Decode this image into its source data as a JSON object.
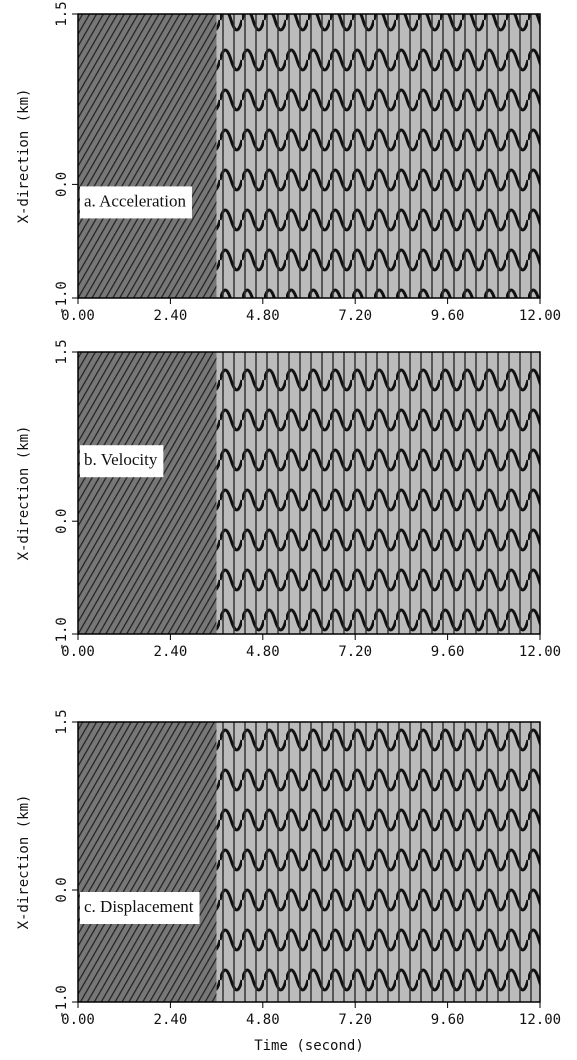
{
  "chart_data": [
    {
      "type": "seismogram",
      "annotation": "a. Acceleration",
      "ylabel": "X-direction (km)",
      "xlim": [
        0,
        12
      ],
      "ylim": [
        -1.0,
        1.5
      ],
      "xticks": [
        {
          "value": 0,
          "label": "0.00"
        },
        {
          "value": 2.4,
          "label": "2.40"
        },
        {
          "value": 4.8,
          "label": "4.80"
        },
        {
          "value": 7.2,
          "label": "7.20"
        },
        {
          "value": 9.6,
          "label": "9.60"
        },
        {
          "value": 12,
          "label": "12.00"
        }
      ],
      "yticks": [
        {
          "value": -1,
          "label": "-1.0"
        },
        {
          "value": 0,
          "label": "0.0"
        },
        1.5
      ]
    },
    {
      "type": "seismogram",
      "annotation": "b. Velocity",
      "ylabel": "X-direction (km)",
      "xlim": [
        0,
        12
      ],
      "ylim": [
        -1.0,
        1.5
      ],
      "xticks": [
        {
          "value": 0,
          "label": "0.00"
        },
        {
          "value": 2.4,
          "label": "2.40"
        },
        {
          "value": 4.8,
          "label": "4.80"
        },
        {
          "value": 7.2,
          "label": "7.20"
        },
        {
          "value": 9.6,
          "label": "9.60"
        },
        {
          "value": 12,
          "label": "12.00"
        }
      ],
      "yticks": [
        {
          "value": -1,
          "label": "-1.0"
        },
        {
          "value": 0,
          "label": "0.0"
        },
        1.5
      ]
    },
    {
      "type": "seismogram",
      "annotation": "c. Displacement",
      "ylabel": "X-direction (km)",
      "xlabel": "Time (second)",
      "xlim": [
        0,
        12
      ],
      "ylim": [
        -1.0,
        1.5
      ],
      "xticks": [
        {
          "value": 0,
          "label": "0.00"
        },
        {
          "value": 2.4,
          "label": "2.40"
        },
        {
          "value": 4.8,
          "label": "4.80"
        },
        {
          "value": 7.2,
          "label": "7.20"
        },
        {
          "value": 9.6,
          "label": "9.60"
        },
        {
          "value": 12,
          "label": "12.00"
        }
      ],
      "yticks": [
        {
          "value": -1,
          "label": "-1.0"
        },
        {
          "value": 0,
          "label": "0.0"
        },
        1.5
      ]
    }
  ]
}
